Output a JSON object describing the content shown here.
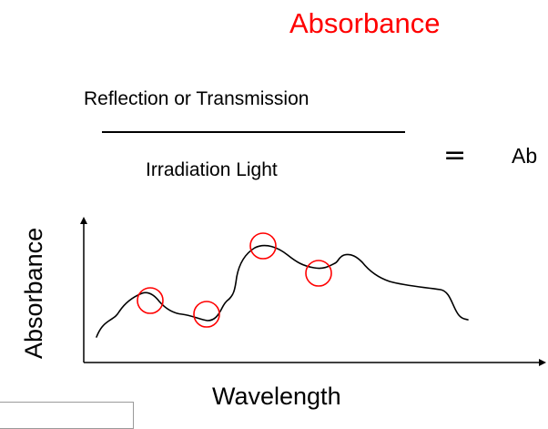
{
  "title": "Absorbance",
  "formula": {
    "numerator": "Reflection or Transmission",
    "denominator": "Irradiation Light",
    "operator": "=",
    "result_visible": "Ab"
  },
  "chart": {
    "x_label": "Wavelength",
    "y_label": "Absorbance",
    "highlighted_points_count": 4
  },
  "colors": {
    "title": "#ff0000",
    "highlight": "#ff0000",
    "text": "#000000",
    "axis": "#000000",
    "box_border": "#9a9a9a"
  }
}
